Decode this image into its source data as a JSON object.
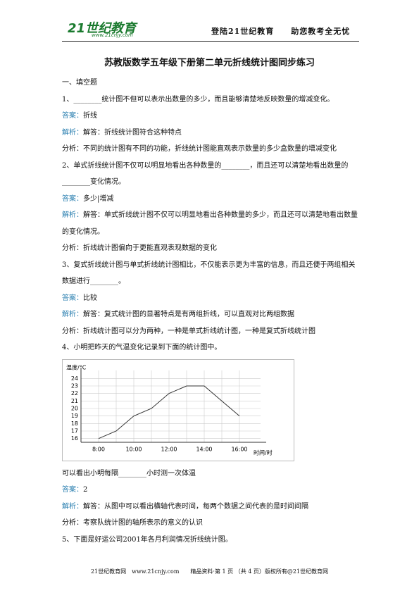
{
  "header": {
    "logo": "21世纪教育",
    "logo_url": "www.21cnjy.com",
    "slogan": "登陆21世纪教育　　助您教考全无忧"
  },
  "title": "苏教版数学五年级下册第二单元折线统计图同步练习",
  "section": "一、填空题",
  "blocks_before": [
    {
      "text": "1、________统计图不但可以表示出数量的多少，而且能够清楚地反映数量的增减变化。"
    },
    {
      "label": "答案：",
      "text": "折线"
    },
    {
      "label": "解析：",
      "text": "解答：折线统计图符合这种特点"
    },
    {
      "text": "分析：不同的统计图有不同的功能，折线统计图能直观表示数量的多少盒数量的增减变化"
    },
    {
      "text": "2、单式折线统计图不仅可以明显地看出各种数量的________，而且还可以清楚地看出数量的________变化情况。"
    },
    {
      "label": "答案：",
      "text": "多少|增减"
    },
    {
      "label": "解析：",
      "text": "解答：单式折线统计图不仅可以明显地看出各种数量的多少，而且还可以清楚地看出数量的变化情况。"
    },
    {
      "text": "分析：折线统计图偏向于更能直观表现数据的变化"
    },
    {
      "text": "3、复式折线统计图与单式折线统计图相比，不仅能表示更为丰富的信息，而且还便于两组相关数据进行________。"
    },
    {
      "label": "答案：",
      "text": "比较"
    },
    {
      "label": "解析：",
      "text": "解答：复式统计图的显著特点是有两组折线，可以直观对比两组数据"
    },
    {
      "text": "分析：折线统计图可以分为两种，一种是单式折线统计图，一种是复式折线统计图"
    },
    {
      "text": "4、小明把昨天的气温变化记录到下面的统计图中。"
    }
  ],
  "chart_data": {
    "type": "line",
    "y_label": "温度/°C",
    "x_label": "时间/时",
    "categories": [
      "8:00",
      null,
      "10:00",
      null,
      "12:00",
      null,
      "14:00",
      null,
      "16:00"
    ],
    "values": [
      16,
      17,
      19,
      20,
      22,
      23,
      23,
      21,
      19
    ],
    "color": "#333333",
    "ylim": [
      15.5,
      24.5
    ],
    "yticks": [
      16,
      17,
      18,
      19,
      20,
      21,
      22,
      23,
      24
    ],
    "grid": true
  },
  "blocks_after": [
    {
      "text": "可以看出小明每隔________小时测一次体温"
    },
    {
      "label": "答案：",
      "text": "2"
    },
    {
      "label": "解析：",
      "text": "解答：从图中可以看出横轴代表时间，每两个数据之间代表的是时间间隔"
    },
    {
      "text": "分析：考察队统计图的轴所表示的意义的认识"
    },
    {
      "text": "5、下面是好运公司2001年各月利润情况折线统计图。"
    }
  ],
  "footer": {
    "text": "21世纪教育网　www.21cnjy.com　　精品资料·第 1 页 （共 4 页）版权所有@21世纪教育网"
  }
}
